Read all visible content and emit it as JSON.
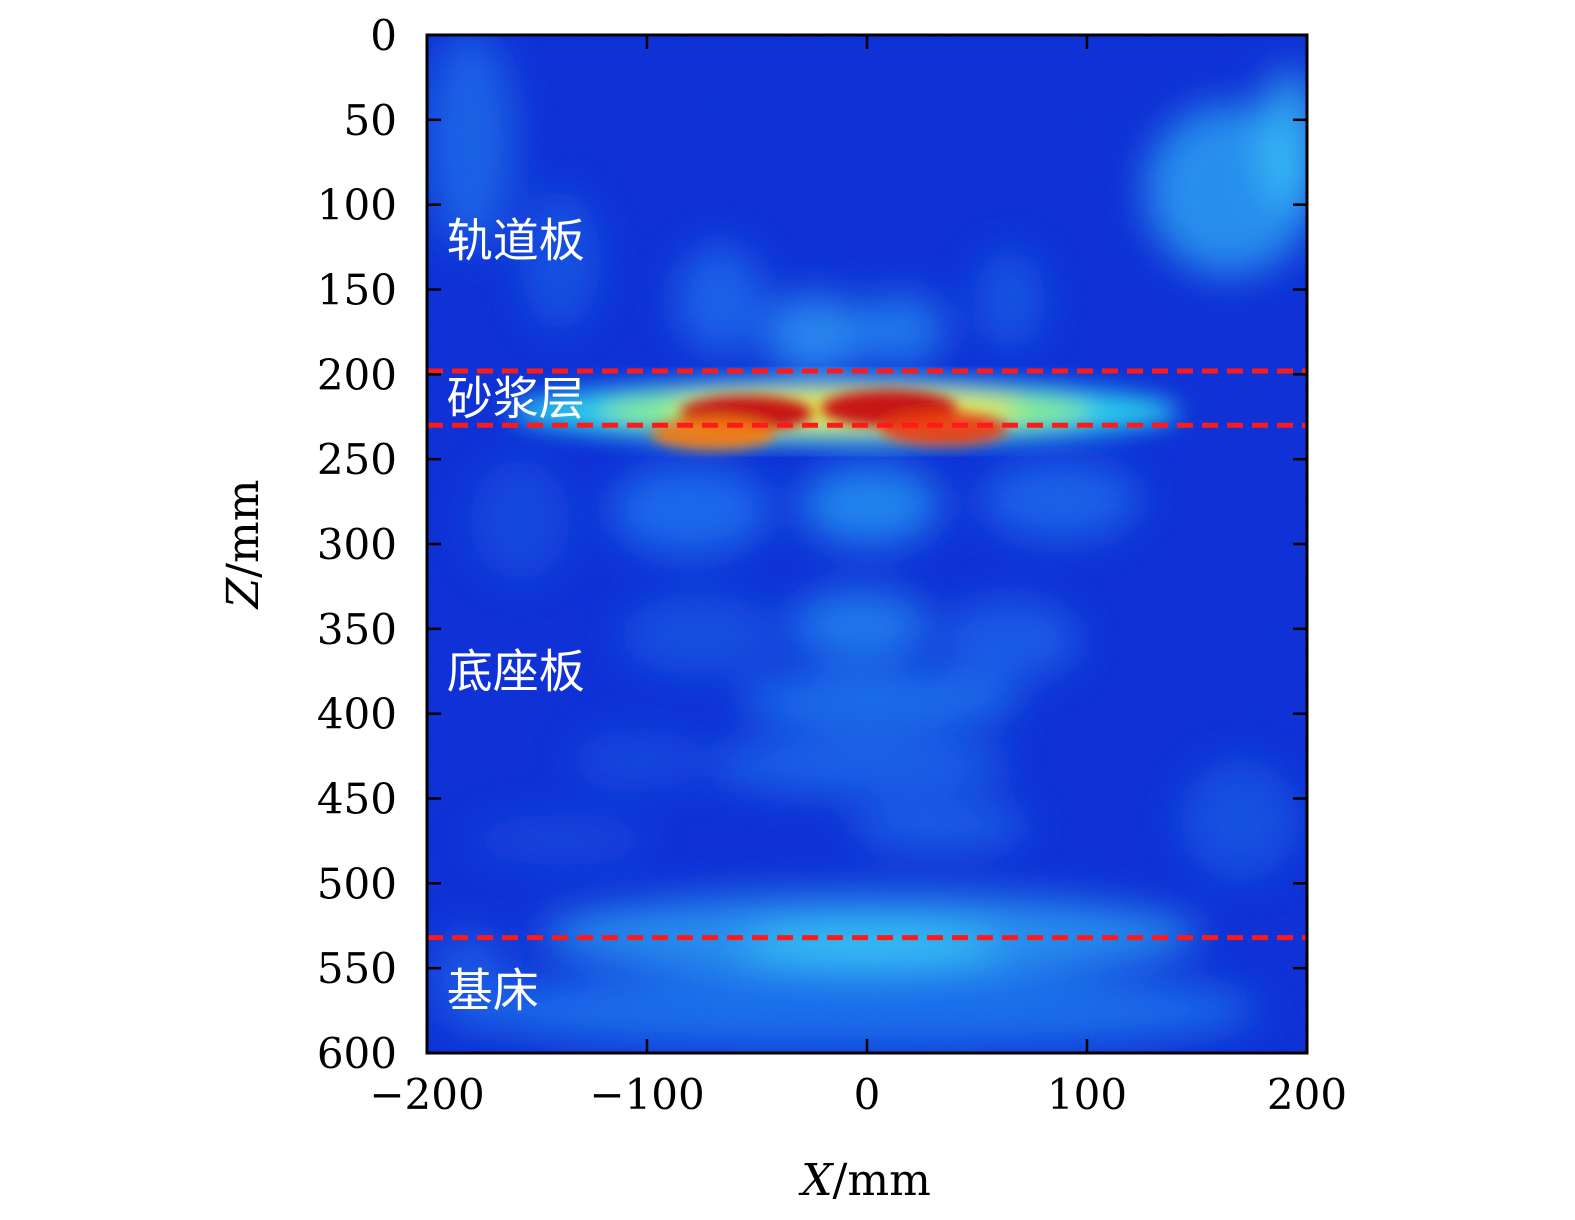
{
  "chart_data": {
    "type": "heatmap",
    "title": "",
    "xlabel_italic": "X",
    "xlabel_unit": "/mm",
    "ylabel_italic": "Z",
    "ylabel_unit": "/mm",
    "xlim": [
      -200,
      200
    ],
    "ylim": [
      0,
      600
    ],
    "y_inverted": true,
    "x_ticks": [
      -200,
      -100,
      0,
      100,
      200
    ],
    "x_tick_labels": [
      "−200",
      "−100",
      "0",
      "100",
      "200"
    ],
    "y_ticks": [
      0,
      50,
      100,
      150,
      200,
      250,
      300,
      350,
      400,
      450,
      500,
      550,
      600
    ],
    "y_tick_labels": [
      "0",
      "50",
      "100",
      "150",
      "200",
      "250",
      "300",
      "350",
      "400",
      "450",
      "500",
      "550",
      "600"
    ],
    "colormap": "jet",
    "grid": false,
    "interfaces": [
      {
        "z": 198,
        "color": "#ff1a1a",
        "style": "dashed"
      },
      {
        "z": 230,
        "color": "#ff1a1a",
        "style": "dashed"
      },
      {
        "z": 532,
        "color": "#ff1a1a",
        "style": "dashed"
      }
    ],
    "layer_labels": [
      {
        "text": "轨道板",
        "x": -191,
        "z": 120
      },
      {
        "text": "砂浆层",
        "x": -191,
        "z": 213
      },
      {
        "text": "底座板",
        "x": -191,
        "z": 374
      },
      {
        "text": "基床",
        "x": -191,
        "z": 562
      }
    ],
    "hotspots": [
      {
        "x": -55,
        "z": 223,
        "intensity": 0.92
      },
      {
        "x": 10,
        "z": 220,
        "intensity": 1.0
      },
      {
        "x": 35,
        "z": 232,
        "intensity": 0.8
      },
      {
        "x": -70,
        "z": 235,
        "intensity": 0.7
      }
    ]
  }
}
